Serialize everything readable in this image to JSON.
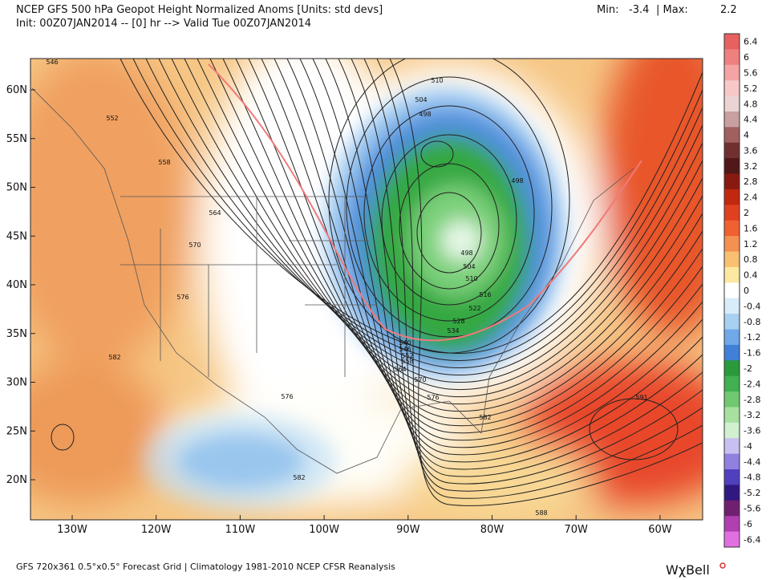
{
  "header": {
    "title": "NCEP GFS 500 hPa Geopot Height Normalized Anoms [Units: std devs]",
    "min_label": "Min:",
    "min": -3.4,
    "max_label": "| Max:",
    "max": 2.2,
    "init": "Init: 00Z07JAN2014 -- [0] hr --> Valid Tue 00Z07JAN2014"
  },
  "map": {
    "lat_labels": [
      "60N",
      "55N",
      "50N",
      "45N",
      "40N",
      "35N",
      "30N",
      "25N",
      "20N"
    ],
    "lon_labels": [
      "130W",
      "120W",
      "110W",
      "100W",
      "90W",
      "80W",
      "70W",
      "60W"
    ],
    "contour_labels": [
      546,
      552,
      558,
      564,
      570,
      576,
      582,
      510,
      504,
      498,
      498,
      498,
      504,
      510,
      516,
      522,
      528,
      534,
      540,
      546,
      552,
      558,
      564,
      570,
      576,
      576,
      582,
      582,
      588,
      591
    ]
  },
  "colorbar": {
    "labels": [
      6.4,
      6,
      5.6,
      5.2,
      4.8,
      4.4,
      4,
      3.6,
      3.2,
      2.8,
      2.4,
      2,
      1.6,
      1.2,
      0.8,
      0.4,
      0,
      -0.4,
      -0.8,
      -1.2,
      -1.6,
      -2,
      -2.4,
      -2.8,
      -3.2,
      -3.6,
      -4,
      -4.4,
      -4.8,
      -5.2,
      -5.6,
      -6,
      -6.4
    ]
  },
  "footer": {
    "source": "GFS 720x361 0.5°x0.5° Forecast Grid | Climatology 1981-2010 NCEP CFSR Reanalysis",
    "logo": "WχBell"
  }
}
